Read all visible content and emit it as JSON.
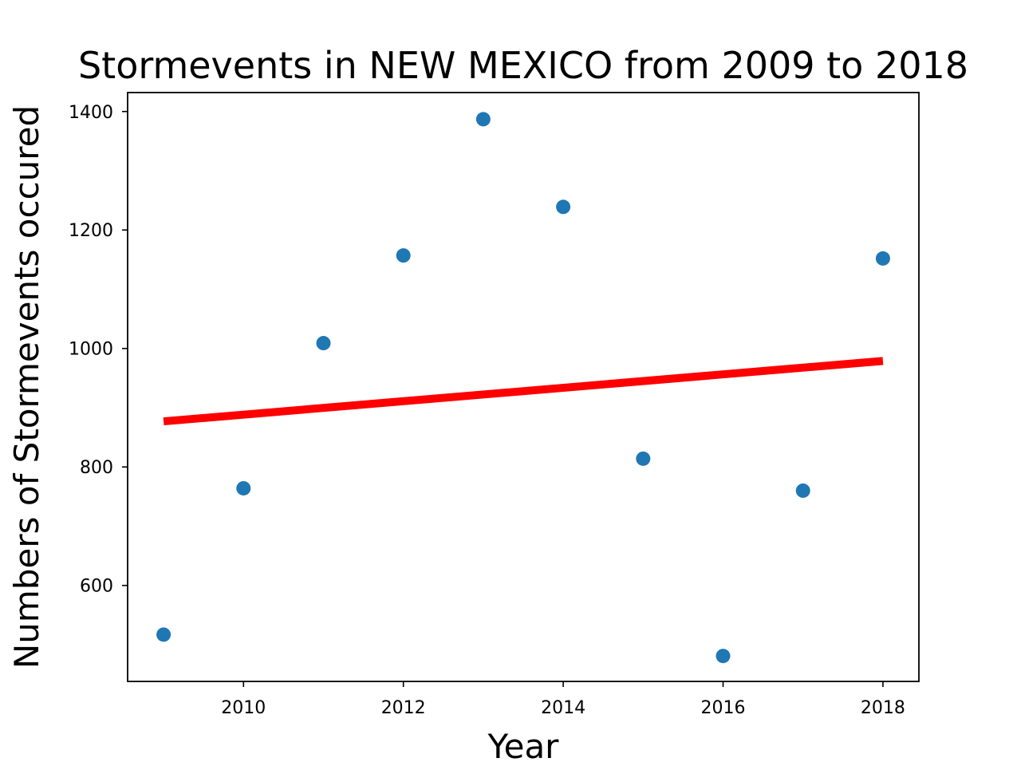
{
  "chart_data": {
    "type": "scatter",
    "title": "Stormevents in NEW MEXICO from 2009 to 2018",
    "xlabel": "Year",
    "ylabel": "Numbers of Stormevents occured",
    "xlim": [
      2008.55,
      2018.45
    ],
    "ylim": [
      438,
      1432
    ],
    "x_ticks": [
      2010,
      2012,
      2014,
      2016,
      2018
    ],
    "x_tick_labels": [
      "2010",
      "2012",
      "2014",
      "2016",
      "2018"
    ],
    "y_ticks": [
      600,
      800,
      1000,
      1200,
      1400
    ],
    "y_tick_labels": [
      "600",
      "800",
      "1000",
      "1200",
      "1400"
    ],
    "grid": false,
    "series": [
      {
        "type": "scatter",
        "color": "#1f77b4",
        "x": [
          2009,
          2010,
          2011,
          2012,
          2013,
          2014,
          2015,
          2016,
          2017,
          2018
        ],
        "y": [
          517,
          764,
          1009,
          1157,
          1387,
          1239,
          814,
          481,
          760,
          1152
        ]
      },
      {
        "type": "line",
        "color": "#ff0000",
        "x": [
          2009,
          2018
        ],
        "y": [
          877,
          979
        ]
      }
    ]
  }
}
